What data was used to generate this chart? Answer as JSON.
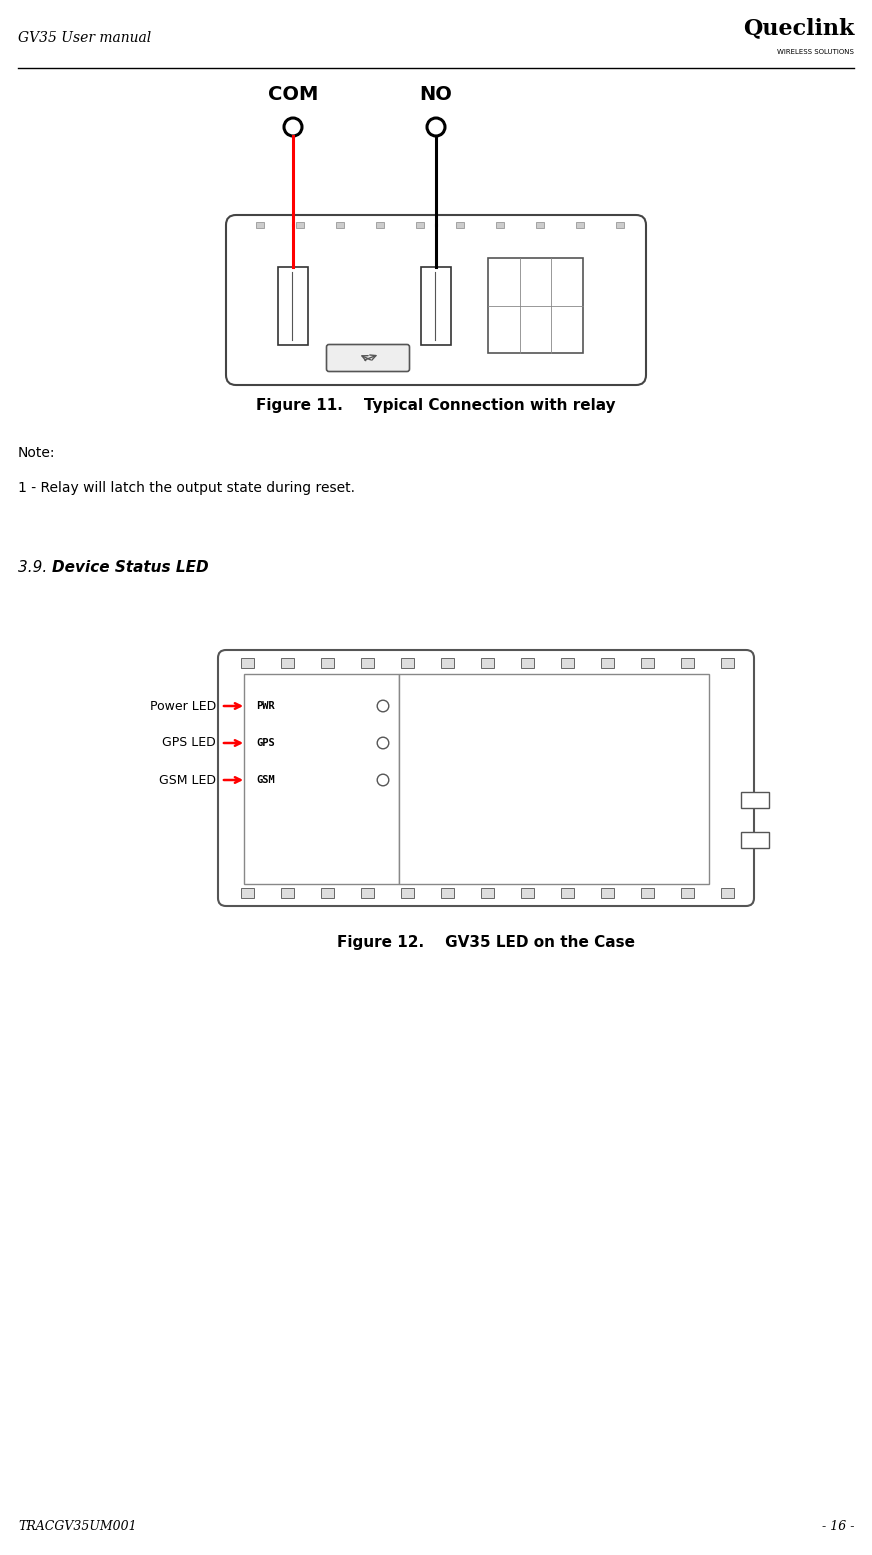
{
  "page_width": 8.72,
  "page_height": 15.55,
  "bg_color": "#ffffff",
  "header_text_left": "GV35 User manual",
  "header_logo_text": "Queclink",
  "footer_text_left": "TRACGV35UM001",
  "footer_text_right": "- 16 -",
  "fig11_caption": "Figure 11.    Typical Connection with relay",
  "fig12_caption": "Figure 12.    GV35 LED on the Case",
  "note_title": "Note:",
  "note_line1": "1 - Relay will latch the output state during reset.",
  "section_title": "3.9. Device Status LED",
  "com_label": "COM",
  "no_label": "NO",
  "led_labels": [
    "Power LED",
    "GPS LED",
    "GSM LED"
  ],
  "led_chip_labels": [
    "PWR",
    "GPS",
    "GSM"
  ]
}
